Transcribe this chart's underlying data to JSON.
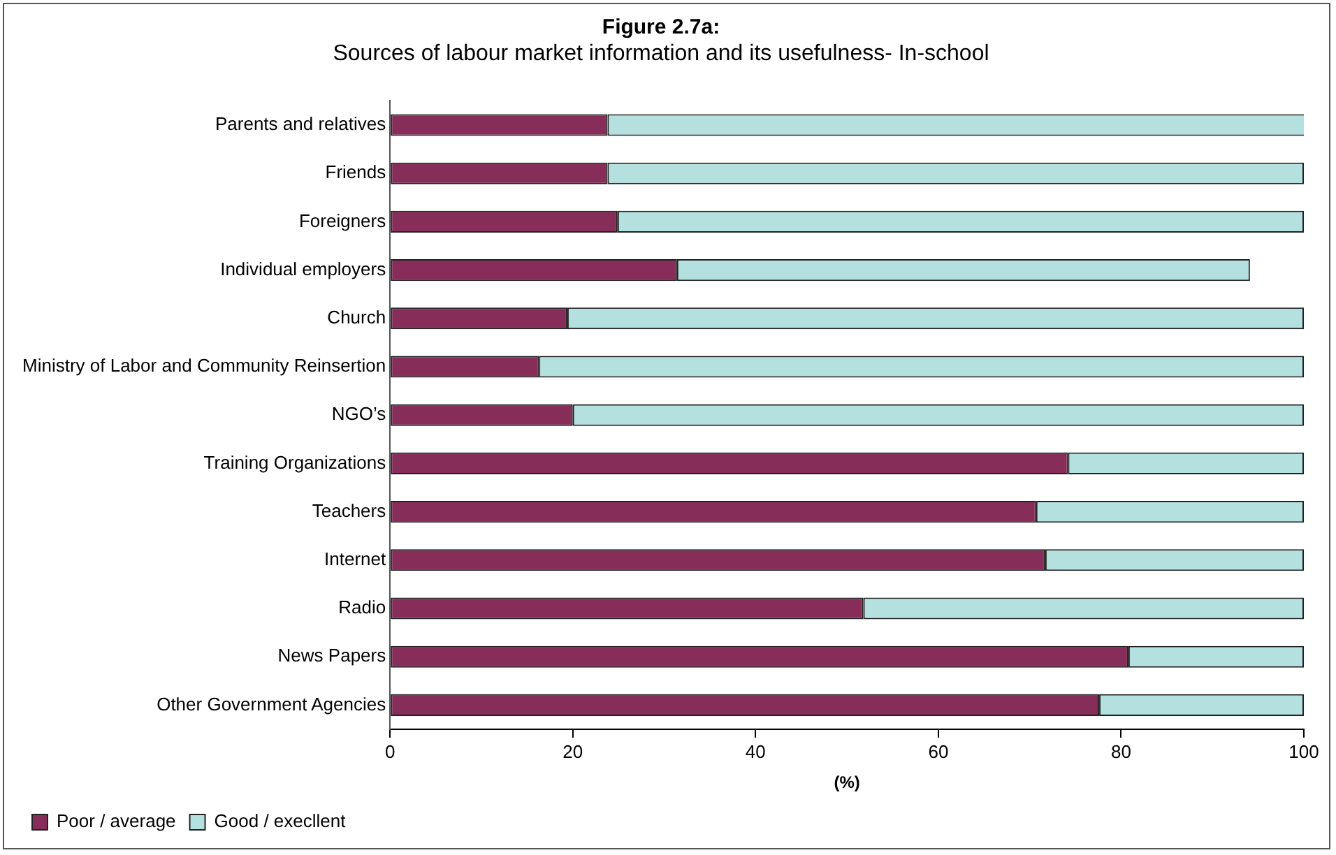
{
  "chart_data": {
    "type": "bar",
    "orientation": "horizontal",
    "stacked": true,
    "title": "Figure 2.7a:",
    "subtitle": "Sources of labour market information and its usefulness- In-school",
    "xlabel": "(%)",
    "categories": [
      "Parents and relatives",
      "Friends",
      "Foreigners",
      "Individual employers",
      "Church",
      "Ministry of Labor and Community Reinsertion",
      "NGO’s",
      "Training Organizations",
      "Teachers",
      "Internet",
      "Radio",
      "News Papers",
      "Other Government Agencies"
    ],
    "series": [
      {
        "name": "Poor / average",
        "color": "#862d59",
        "values": [
          23.8,
          23.8,
          24.9,
          31.4,
          19.4,
          16.3,
          20.0,
          74.2,
          70.7,
          71.7,
          51.8,
          80.8,
          77.6
        ]
      },
      {
        "name": "Good / execllent",
        "color": "#b4e0e0",
        "values": [
          76.6,
          76.2,
          75.1,
          62.7,
          80.6,
          83.7,
          80.0,
          25.8,
          29.3,
          28.3,
          48.2,
          19.2,
          22.4
        ]
      }
    ],
    "xlim": [
      0,
      100
    ],
    "xticks": [
      0,
      20,
      40,
      60,
      80,
      100
    ],
    "grid": false,
    "legend": "bottom left"
  }
}
